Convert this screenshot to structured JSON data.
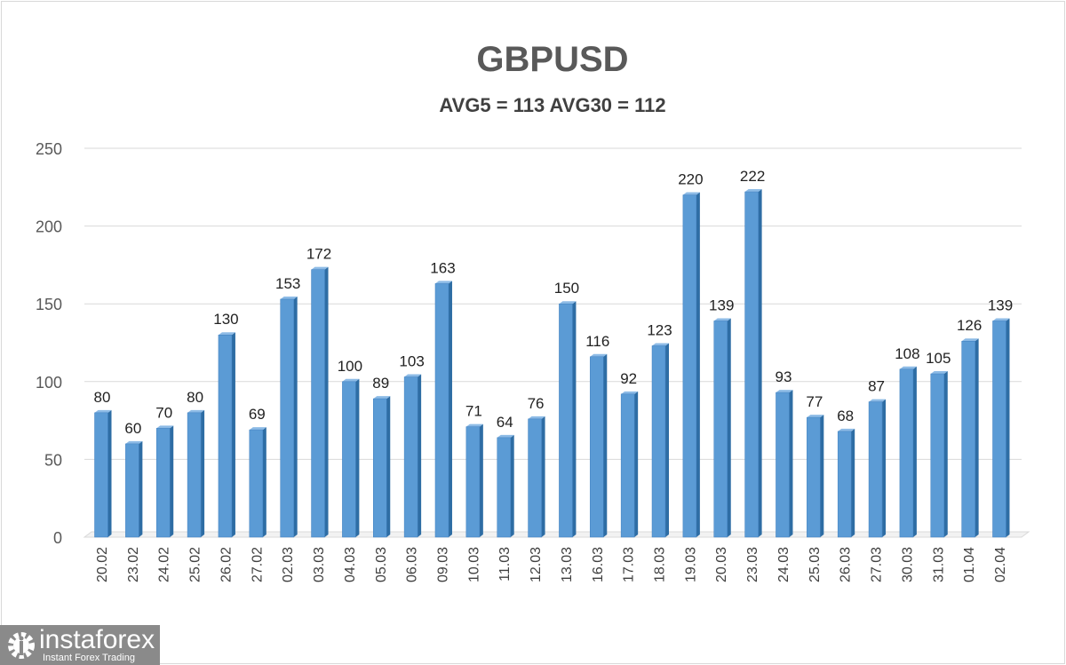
{
  "chart_data": {
    "type": "bar",
    "title": "GBPUSD",
    "subtitle": "AVG5 = 113 AVG30 = 112",
    "categories": [
      "20.02",
      "23.02",
      "24.02",
      "25.02",
      "26.02",
      "27.02",
      "02.03",
      "03.03",
      "04.03",
      "05.03",
      "06.03",
      "09.03",
      "10.03",
      "11.03",
      "12.03",
      "13.03",
      "16.03",
      "17.03",
      "18.03",
      "19.03",
      "20.03",
      "23.03",
      "24.03",
      "25.03",
      "26.03",
      "27.03",
      "30.03",
      "31.03",
      "01.04",
      "02.04"
    ],
    "values": [
      80,
      60,
      70,
      80,
      130,
      69,
      153,
      172,
      100,
      89,
      103,
      163,
      71,
      64,
      76,
      150,
      116,
      92,
      123,
      220,
      139,
      222,
      93,
      77,
      68,
      87,
      108,
      105,
      126,
      139
    ],
    "ylim": [
      0,
      250
    ],
    "yticks": [
      0,
      50,
      100,
      150,
      200,
      250
    ],
    "grid": true,
    "legend": "none",
    "bar_color": "#5b9bd5",
    "bar_side_color": "#2e6da4"
  },
  "logo": {
    "name": "instaforex",
    "tagline": "Instant Forex Trading"
  }
}
